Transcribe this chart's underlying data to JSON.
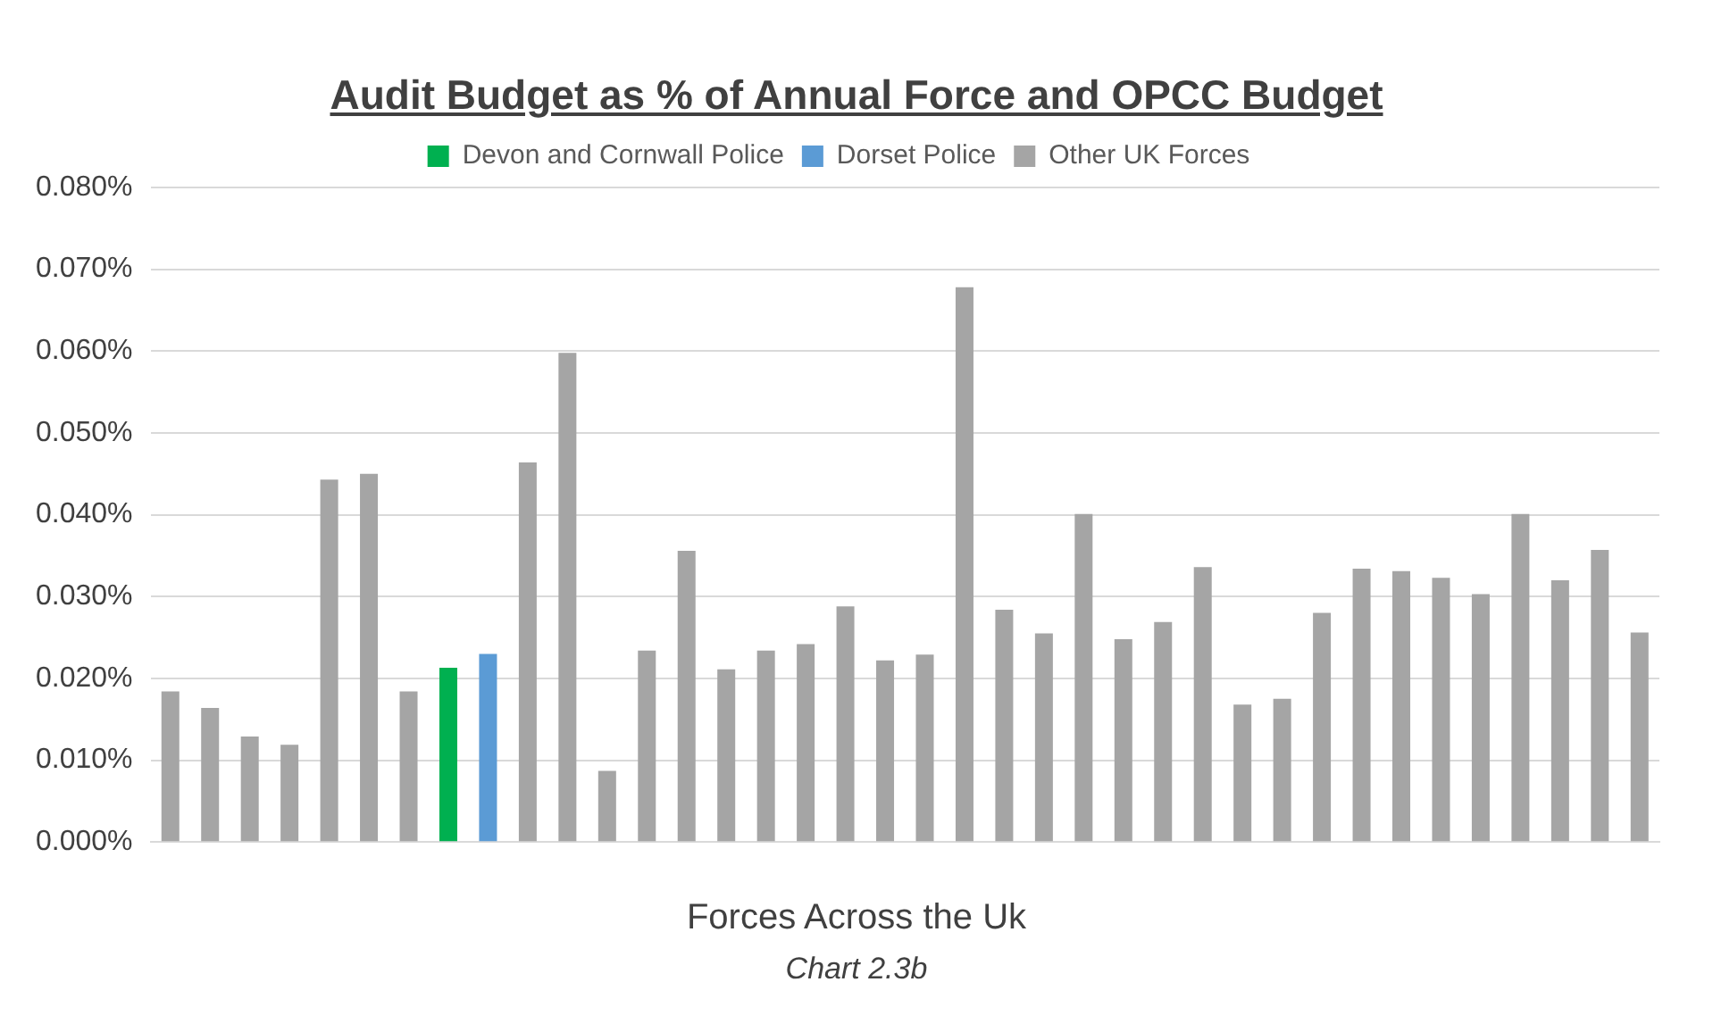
{
  "chart_data": {
    "type": "bar",
    "title": "Audit Budget as % of Annual Force and OPCC Budget",
    "xlabel": "Forces Across the Uk",
    "annotations": [
      "Chart 2.3b"
    ],
    "categories": [
      null,
      null,
      null,
      null,
      null,
      null,
      null,
      null,
      null,
      null,
      null,
      null,
      null,
      null,
      null,
      null,
      null,
      null,
      null,
      null,
      null,
      null,
      null,
      null,
      null,
      null,
      null,
      null,
      null,
      null,
      null,
      null,
      null,
      null,
      null,
      null,
      null,
      null
    ],
    "series": [
      {
        "name": "Devon and Cornwall Police",
        "color": "#00b050",
        "values": [
          null,
          null,
          null,
          null,
          null,
          null,
          null,
          0.0213,
          null,
          null,
          null,
          null,
          null,
          null,
          null,
          null,
          null,
          null,
          null,
          null,
          null,
          null,
          null,
          null,
          null,
          null,
          null,
          null,
          null,
          null,
          null,
          null,
          null,
          null,
          null,
          null,
          null,
          null
        ]
      },
      {
        "name": "Dorset Police",
        "color": "#5b9bd5",
        "values": [
          null,
          null,
          null,
          null,
          null,
          null,
          null,
          null,
          0.023,
          null,
          null,
          null,
          null,
          null,
          null,
          null,
          null,
          null,
          null,
          null,
          null,
          null,
          null,
          null,
          null,
          null,
          null,
          null,
          null,
          null,
          null,
          null,
          null,
          null,
          null,
          null,
          null,
          null
        ]
      },
      {
        "name": "Other UK Forces",
        "color": "#a5a5a5",
        "values": [
          0.0184,
          0.0164,
          0.0129,
          0.0119,
          0.0443,
          0.045,
          0.0184,
          null,
          null,
          0.0464,
          0.0598,
          0.0087,
          0.0234,
          0.0356,
          0.0211,
          0.0234,
          0.0242,
          0.0288,
          0.0222,
          0.0229,
          0.0678,
          0.0284,
          0.0255,
          0.0401,
          0.0248,
          0.0269,
          0.0336,
          0.0168,
          0.0175,
          0.028,
          0.0334,
          0.0331,
          0.0323,
          0.0303,
          0.0401,
          0.032,
          0.0357,
          0.0256
        ]
      }
    ],
    "ylim": [
      0,
      0.08
    ],
    "yticks": [
      {
        "value": 0,
        "label": "0.000%"
      },
      {
        "value": 0.01,
        "label": "0.010%"
      },
      {
        "value": 0.02,
        "label": "0.020%"
      },
      {
        "value": 0.03,
        "label": "0.030%"
      },
      {
        "value": 0.04,
        "label": "0.040%"
      },
      {
        "value": 0.05,
        "label": "0.050%"
      },
      {
        "value": 0.06,
        "label": "0.060%"
      },
      {
        "value": 0.07,
        "label": "0.070%"
      },
      {
        "value": 0.08,
        "label": "0.080%"
      }
    ],
    "grid": "y",
    "legend": "top"
  }
}
